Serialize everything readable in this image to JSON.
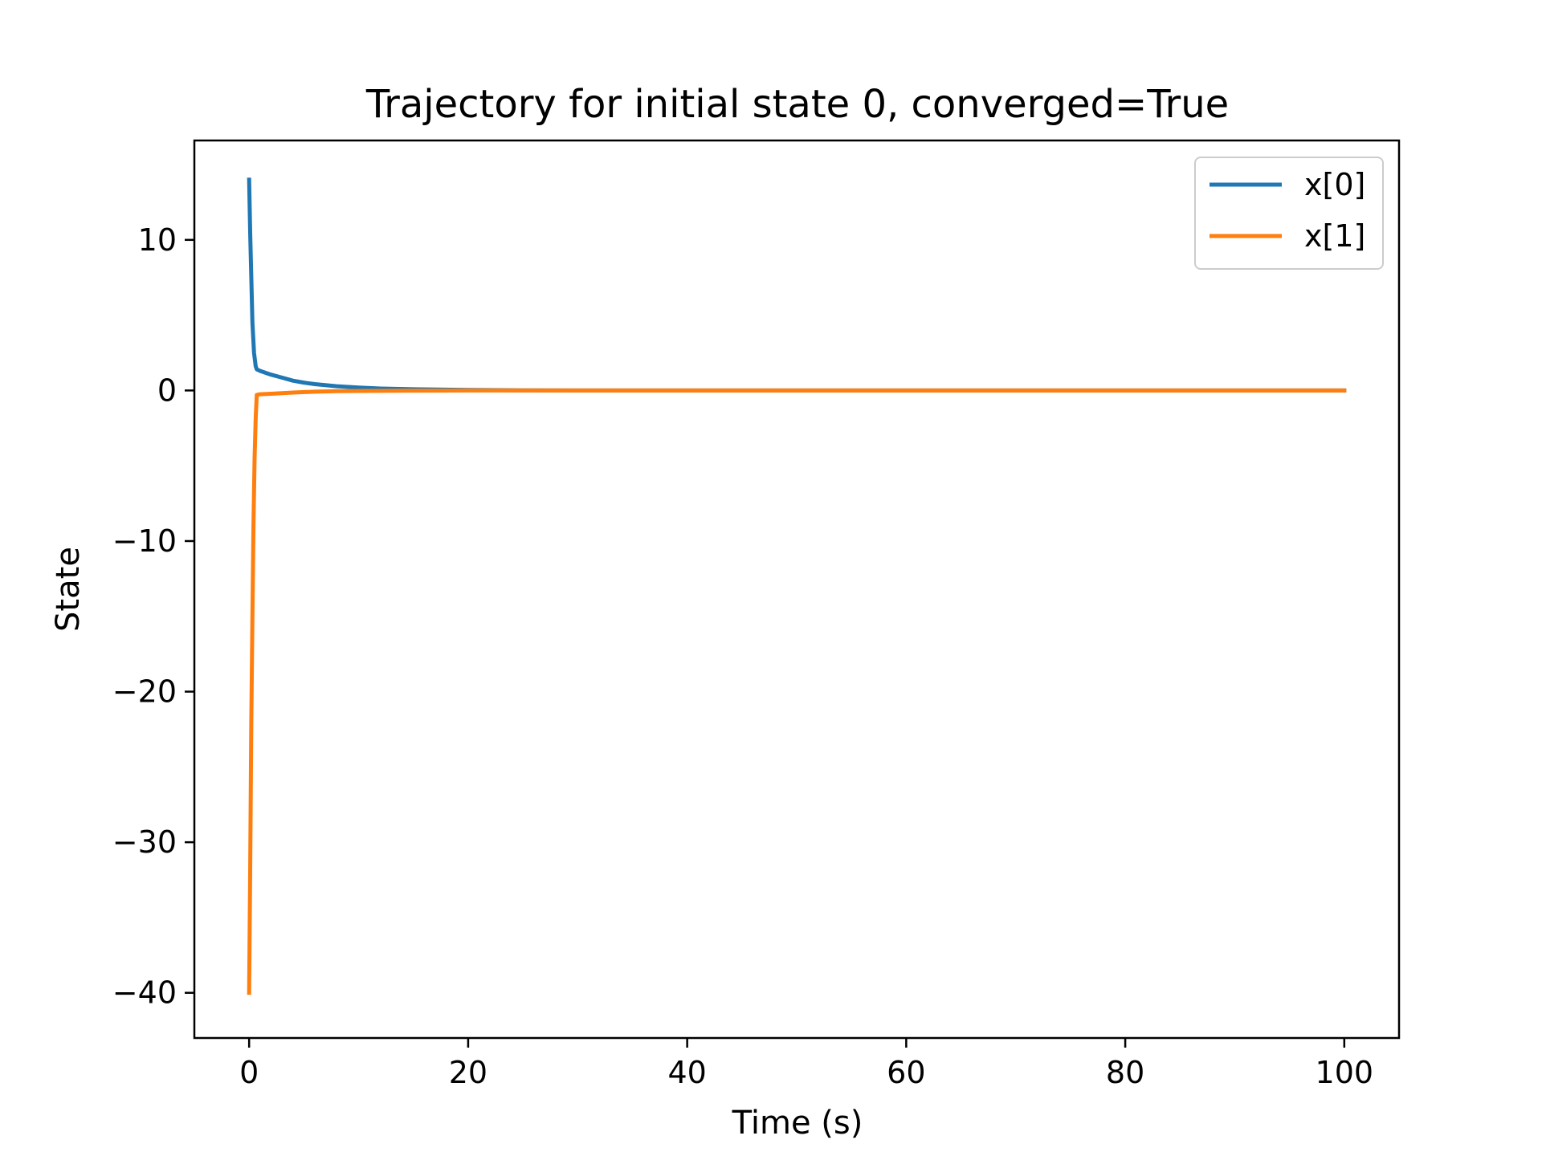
{
  "chart_data": {
    "type": "line",
    "title": "Trajectory for initial state 0, converged=True",
    "xlabel": "Time (s)",
    "ylabel": "State",
    "xlim": [
      -5,
      105
    ],
    "ylim": [
      -43,
      16.6
    ],
    "xticks": [
      0,
      20,
      40,
      60,
      80,
      100
    ],
    "xtick_labels": [
      "0",
      "20",
      "40",
      "60",
      "80",
      "100"
    ],
    "yticks": [
      10,
      0,
      -10,
      -20,
      -30,
      -40
    ],
    "ytick_labels": [
      "10",
      "0",
      "−10",
      "−20",
      "−30",
      "−40"
    ],
    "grid": false,
    "legend_position": "top-right",
    "series": [
      {
        "name": "x[0]",
        "color": "#1f77b4",
        "x": [
          0,
          0.1,
          0.2,
          0.3,
          0.45,
          0.6,
          0.7,
          1,
          2,
          3,
          4,
          5,
          6,
          8,
          10,
          12,
          15,
          20,
          25,
          30,
          40,
          50,
          60,
          70,
          80,
          90,
          100
        ],
        "y": [
          14.0,
          10.5,
          7.5,
          4.5,
          2.5,
          1.6,
          1.4,
          1.3,
          1.05,
          0.85,
          0.65,
          0.52,
          0.42,
          0.28,
          0.19,
          0.13,
          0.08,
          0.03,
          0.01,
          0.0,
          0.0,
          0.0,
          0.0,
          0.0,
          0.0,
          0.0,
          0.0
        ]
      },
      {
        "name": "x[1]",
        "color": "#ff7f0e",
        "x": [
          0,
          0.1,
          0.2,
          0.3,
          0.4,
          0.5,
          0.6,
          0.7,
          1,
          2,
          3,
          4,
          6,
          8,
          10,
          15,
          20,
          30,
          40,
          50,
          60,
          70,
          80,
          90,
          100
        ],
        "y": [
          -40.0,
          -32.0,
          -22.0,
          -15.0,
          -9.0,
          -4.5,
          -1.8,
          -0.3,
          -0.25,
          -0.22,
          -0.18,
          -0.14,
          -0.08,
          -0.05,
          -0.03,
          -0.01,
          0.0,
          0.0,
          0.0,
          0.0,
          0.0,
          0.0,
          0.0,
          0.0,
          0.0
        ]
      }
    ]
  }
}
